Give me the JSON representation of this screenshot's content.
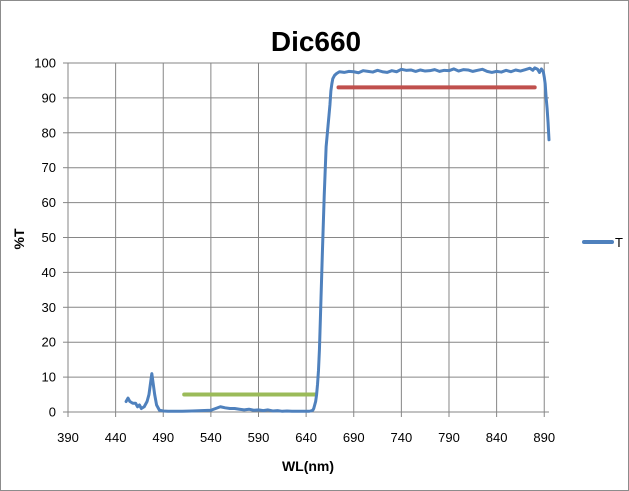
{
  "chart_data": {
    "type": "line",
    "title": "Dic660",
    "xlabel": "WL(nm)",
    "ylabel": "%T",
    "xlim": [
      390,
      895
    ],
    "ylim": [
      0,
      100
    ],
    "xticks": [
      390,
      440,
      490,
      540,
      590,
      640,
      690,
      740,
      790,
      840,
      890
    ],
    "yticks": [
      0,
      10,
      20,
      30,
      40,
      50,
      60,
      70,
      80,
      90,
      100
    ],
    "grid": true,
    "legend": {
      "position": "right",
      "entries": [
        "T"
      ]
    },
    "series": [
      {
        "name": "T",
        "color": "#4f81bd",
        "x": [
          451,
          453,
          455,
          458,
          461,
          463,
          465,
          467,
          470,
          473,
          475,
          477,
          478,
          479,
          481,
          483,
          486,
          490,
          495,
          500,
          510,
          520,
          530,
          540,
          545,
          550,
          555,
          560,
          565,
          570,
          575,
          580,
          585,
          590,
          595,
          600,
          605,
          610,
          615,
          620,
          625,
          630,
          635,
          640,
          643,
          645,
          647,
          648,
          649,
          650,
          651,
          652,
          653,
          654,
          655,
          657,
          659,
          661,
          663,
          664,
          665,
          666,
          667,
          668,
          670,
          672,
          675,
          680,
          685,
          690,
          695,
          700,
          705,
          710,
          715,
          720,
          725,
          730,
          735,
          740,
          745,
          750,
          755,
          760,
          765,
          770,
          775,
          780,
          785,
          790,
          795,
          800,
          805,
          810,
          815,
          820,
          825,
          830,
          835,
          840,
          845,
          850,
          855,
          860,
          865,
          870,
          875,
          878,
          880,
          883,
          885,
          887,
          889,
          890,
          891,
          892,
          893,
          894,
          895
        ],
        "y": [
          3,
          4,
          3,
          2.5,
          2.5,
          1.5,
          2,
          1,
          1.5,
          3,
          5,
          9,
          11,
          9,
          5,
          2,
          0.5,
          0.3,
          0.2,
          0.2,
          0.2,
          0.3,
          0.4,
          0.5,
          1,
          1.5,
          1.2,
          1,
          1,
          0.8,
          0.6,
          0.8,
          0.5,
          0.6,
          0.4,
          0.6,
          0.3,
          0.4,
          0.2,
          0.3,
          0.2,
          0.2,
          0.2,
          0.2,
          0.2,
          0.3,
          0.5,
          1,
          2,
          3,
          5,
          8,
          12,
          18,
          27,
          45,
          62,
          76,
          82,
          85,
          88,
          92,
          94,
          95.5,
          96.5,
          97,
          97.5,
          97.3,
          97.6,
          97.5,
          97.2,
          97.8,
          97.6,
          97.4,
          97.9,
          97.5,
          97.3,
          97.8,
          97.5,
          98.2,
          97.9,
          98,
          97.6,
          98,
          97.7,
          97.8,
          98.1,
          97.6,
          97.9,
          97.8,
          98.3,
          97.7,
          98.1,
          98,
          97.6,
          97.9,
          98.2,
          97.6,
          97.3,
          97.6,
          97.4,
          97.9,
          97.5,
          98,
          97.7,
          98.1,
          98.5,
          97.9,
          98.6,
          98.2,
          97.3,
          98.3,
          97.5,
          96,
          94,
          90,
          87,
          83,
          78
        ]
      }
    ],
    "annotations": [
      {
        "type": "segment",
        "color": "#9bbb59",
        "x": [
          512,
          650
        ],
        "y": 5
      },
      {
        "type": "segment",
        "color": "#c0504d",
        "x": [
          674,
          880
        ],
        "y": 93
      }
    ]
  }
}
